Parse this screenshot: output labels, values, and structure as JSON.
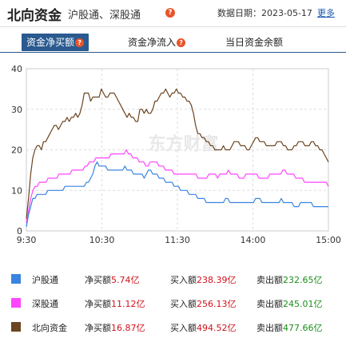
{
  "header": {
    "title": "北向资金",
    "subtitle": "沪股通、深股通",
    "help_glyph": "?",
    "date_label": "数据日期：2023-05-17",
    "more_link": "更多"
  },
  "tabs": [
    {
      "label": "资金净买额",
      "active": true
    },
    {
      "label": "资金净流入",
      "active": false
    },
    {
      "label": "当日资金余额",
      "active": false
    }
  ],
  "chart_data": {
    "type": "line",
    "title": "",
    "xlabel": "",
    "ylabel": "",
    "ylim": [
      0,
      40
    ],
    "yticks": [
      "0",
      "10",
      "20",
      "30",
      "40"
    ],
    "xticks": [
      "9:30",
      "10:30",
      "11:30",
      "14:00",
      "15:00"
    ],
    "watermark": "东方财富",
    "grid": true,
    "series": [
      {
        "name": "北向资金",
        "color": "#6b4420",
        "values": [
          3,
          8,
          14,
          18,
          20,
          21,
          21,
          20,
          22,
          22,
          23,
          24,
          25,
          26,
          26,
          25,
          26,
          27,
          27,
          28,
          27,
          28,
          28,
          29,
          28,
          29,
          31,
          34,
          34,
          34,
          32,
          33,
          33,
          33,
          33,
          35,
          34,
          33,
          33,
          34,
          34,
          34,
          33,
          32,
          31,
          30,
          29,
          28,
          29,
          28,
          28,
          27,
          27,
          30,
          30,
          29,
          30,
          29,
          29,
          30,
          32,
          32,
          33,
          34,
          34,
          35,
          34,
          33,
          34,
          34,
          35,
          34,
          34,
          33,
          33,
          32,
          32,
          31,
          29,
          26,
          24,
          24,
          23,
          23,
          22,
          22,
          21,
          21,
          20,
          20,
          20,
          20,
          21,
          20,
          20,
          20,
          21,
          22,
          22,
          22,
          21,
          21,
          21,
          20,
          20,
          21,
          22,
          23,
          23,
          22,
          22,
          22,
          21,
          21,
          21,
          21,
          21,
          22,
          22,
          22,
          21,
          21,
          20,
          20,
          20,
          21,
          21,
          22,
          22,
          22,
          21,
          21,
          21,
          22,
          22,
          21,
          21,
          20,
          20,
          19,
          18,
          17
        ]
      },
      {
        "name": "深股通",
        "color": "#ff44ff",
        "values": [
          2,
          5,
          8,
          10,
          11,
          11,
          12,
          12,
          12,
          12,
          13,
          13,
          13,
          13,
          13,
          14,
          14,
          14,
          14,
          14,
          14,
          15,
          15,
          15,
          15,
          15,
          15,
          16,
          16,
          17,
          17,
          17,
          18,
          18,
          18,
          18,
          18,
          18,
          18,
          19,
          19,
          19,
          19,
          19,
          19,
          19,
          20,
          19,
          19,
          18,
          18,
          18,
          17,
          17,
          17,
          16,
          16,
          17,
          17,
          17,
          17,
          16,
          16,
          16,
          15,
          15,
          15,
          15,
          14,
          14,
          14,
          14,
          14,
          14,
          14,
          14,
          14,
          14,
          14,
          13,
          13,
          13,
          13,
          13,
          14,
          14,
          14,
          14,
          13,
          14,
          14,
          14,
          14,
          15,
          14,
          14,
          14,
          14,
          13,
          13,
          13,
          14,
          14,
          14,
          14,
          14,
          14,
          13,
          13,
          13,
          13,
          13,
          14,
          14,
          14,
          14,
          14,
          14,
          15,
          15,
          14,
          14,
          14,
          14,
          13,
          13,
          13,
          13,
          12,
          12,
          12,
          12,
          12,
          12,
          12,
          12,
          12,
          12,
          12,
          11
        ]
      },
      {
        "name": "沪股通",
        "color": "#3a84e0",
        "values": [
          1,
          4,
          6,
          8,
          8,
          9,
          9,
          9,
          9,
          9,
          10,
          10,
          10,
          10,
          10,
          10,
          10,
          10,
          11,
          11,
          11,
          11,
          11,
          11,
          11,
          11,
          11,
          11,
          12,
          12,
          13,
          14,
          16,
          17,
          16,
          16,
          16,
          16,
          15,
          15,
          15,
          15,
          15,
          15,
          15,
          15,
          16,
          15,
          15,
          15,
          14,
          14,
          14,
          14,
          14,
          13,
          14,
          15,
          15,
          14,
          14,
          14,
          13,
          13,
          13,
          12,
          12,
          12,
          12,
          11,
          11,
          11,
          10,
          10,
          10,
          10,
          9,
          9,
          9,
          9,
          8,
          8,
          8,
          8,
          7,
          7,
          7,
          7,
          7,
          7,
          7,
          7,
          7,
          8,
          8,
          7,
          7,
          7,
          7,
          7,
          7,
          7,
          7,
          7,
          7,
          7,
          7,
          8,
          8,
          8,
          7,
          7,
          7,
          7,
          7,
          7,
          7,
          7,
          7,
          8,
          7,
          7,
          7,
          7,
          7,
          6,
          6,
          6,
          7,
          7,
          7,
          7,
          7,
          7,
          6,
          6,
          6,
          6,
          6,
          6,
          6,
          6
        ]
      }
    ]
  },
  "legend": [
    {
      "name": "沪股通",
      "color": "#3a84e0",
      "net_label": "净买额",
      "net_value": "5.74亿",
      "buy_label": "买入额",
      "buy_value": "238.39亿",
      "sell_label": "卖出额",
      "sell_value": "232.65亿"
    },
    {
      "name": "深股通",
      "color": "#ff44ff",
      "net_label": "净买额",
      "net_value": "11.12亿",
      "buy_label": "买入额",
      "buy_value": "256.13亿",
      "sell_label": "卖出额",
      "sell_value": "245.01亿"
    },
    {
      "name": "北向资金",
      "color": "#6b4420",
      "net_label": "净买额",
      "net_value": "16.87亿",
      "buy_label": "买入额",
      "buy_value": "494.52亿",
      "sell_label": "卖出额",
      "sell_value": "477.66亿"
    }
  ]
}
